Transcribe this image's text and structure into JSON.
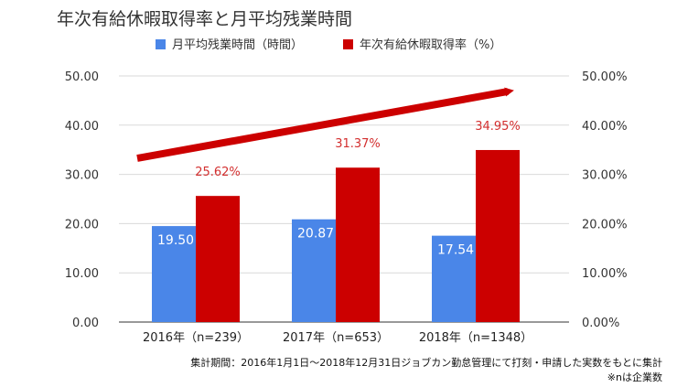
{
  "chart_data": {
    "type": "bar",
    "title": "年次有給休暇取得率と月平均残業時間",
    "categories": [
      "2016年（n=239）",
      "2017年（n=653）",
      "2018年（n=1348）"
    ],
    "series": [
      {
        "name": "月平均残業時間（時間）",
        "values": [
          19.5,
          20.87,
          17.54
        ],
        "labels": [
          "19.50",
          "20.87",
          "17.54"
        ],
        "color": "#4a86e8",
        "axis": "left"
      },
      {
        "name": "年次有給休暇取得率（%）",
        "values": [
          25.62,
          31.37,
          34.95
        ],
        "labels": [
          "25.62%",
          "31.37%",
          "34.95%"
        ],
        "color": "#cc0000",
        "axis": "right"
      }
    ],
    "ylim_left": [
      0,
      50
    ],
    "ylim_right": [
      0,
      50
    ],
    "yticks_left": [
      "0.00",
      "10.00",
      "20.00",
      "30.00",
      "40.00",
      "50.00"
    ],
    "yticks_right": [
      "0.00%",
      "10.00%",
      "20.00%",
      "30.00%",
      "40.00%",
      "50.00%"
    ],
    "grid": true,
    "legend_position": "top-center",
    "trend_arrow_color": "#cc0000"
  },
  "footnote": {
    "line1": "集計期間：2016年1月1日～2018年12月31日ジョブカン勤怠管理にて打刻・申請した実数をもとに集計",
    "line2": "※nは企業数"
  }
}
